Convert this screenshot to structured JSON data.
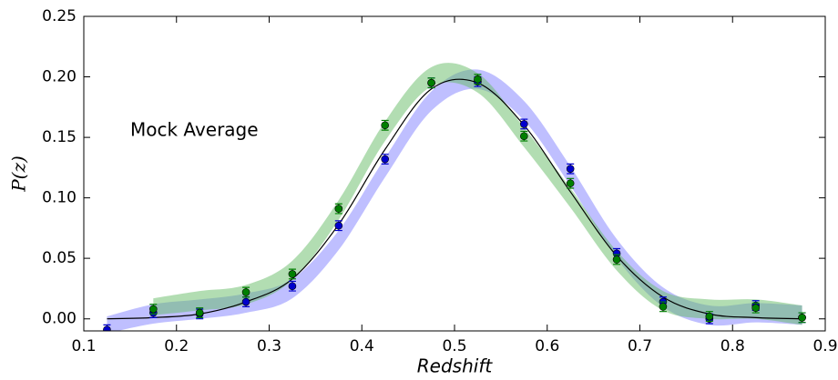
{
  "chart_data": {
    "type": "scatter",
    "annotation": "Mock Average",
    "xlabel": "Redshift",
    "ylabel": "P(z)",
    "xlim": [
      0.1,
      0.9
    ],
    "ylim": [
      -0.01,
      0.25
    ],
    "xticks": [
      0.1,
      0.2,
      0.3,
      0.4,
      0.5,
      0.6,
      0.7,
      0.8,
      0.9
    ],
    "yticks": [
      {
        "value": 0,
        "label": "0.00"
      },
      0.05,
      {
        "value": 0.1,
        "label": "0.10"
      },
      0.15,
      {
        "value": 0.2,
        "label": "0.20"
      },
      0.25
    ],
    "grid": false,
    "x": [
      0.125,
      0.175,
      0.225,
      0.275,
      0.325,
      0.375,
      0.425,
      0.475,
      0.525,
      0.575,
      0.625,
      0.675,
      0.725,
      0.775,
      0.825,
      0.875
    ],
    "series": [
      {
        "color": "#0000cc",
        "values": [
          -0.009,
          0.005,
          0.004,
          0.014,
          0.027,
          0.077,
          0.132,
          0.195,
          0.196,
          0.161,
          0.124,
          0.054,
          0.014,
          0.0,
          0.011,
          0.001
        ],
        "errors": [
          0.004,
          0.004,
          0.004,
          0.004,
          0.004,
          0.004,
          0.004,
          0.004,
          0.004,
          0.004,
          0.004,
          0.004,
          0.004,
          0.004,
          0.004,
          0.004
        ]
      },
      {
        "color": "#007f00",
        "values": [
          null,
          0.008,
          0.005,
          0.022,
          0.037,
          0.091,
          0.16,
          0.195,
          0.198,
          0.151,
          0.112,
          0.049,
          0.01,
          0.002,
          0.009,
          0.001
        ],
        "errors": [
          null,
          0.004,
          0.004,
          0.004,
          0.004,
          0.004,
          0.004,
          0.004,
          0.004,
          0.004,
          0.004,
          0.004,
          0.004,
          0.004,
          0.004,
          0.004
        ]
      }
    ],
    "bands": [
      {
        "color": "#8080ff",
        "x": [
          0.125,
          0.175,
          0.225,
          0.275,
          0.325,
          0.375,
          0.425,
          0.475,
          0.525,
          0.575,
          0.625,
          0.675,
          0.725,
          0.775,
          0.825,
          0.875
        ],
        "lower": [
          -0.012,
          -0.004,
          0.0,
          0.005,
          0.017,
          0.057,
          0.117,
          0.172,
          0.19,
          0.164,
          0.11,
          0.05,
          0.01,
          -0.005,
          -0.003,
          -0.005
        ],
        "upper": [
          0.002,
          0.012,
          0.016,
          0.021,
          0.033,
          0.073,
          0.133,
          0.188,
          0.206,
          0.18,
          0.126,
          0.066,
          0.026,
          0.011,
          0.013,
          0.011
        ]
      },
      {
        "color": "#66bb66",
        "x": [
          0.175,
          0.225,
          0.275,
          0.325,
          0.375,
          0.425,
          0.475,
          0.525,
          0.575,
          0.625,
          0.675,
          0.725,
          0.775,
          0.825,
          0.875
        ],
        "lower": [
          0.003,
          0.007,
          0.012,
          0.032,
          0.082,
          0.147,
          0.192,
          0.187,
          0.142,
          0.092,
          0.04,
          0.007,
          0.0,
          0.0,
          -0.005
        ],
        "upper": [
          0.017,
          0.023,
          0.028,
          0.048,
          0.098,
          0.163,
          0.208,
          0.203,
          0.158,
          0.108,
          0.056,
          0.023,
          0.016,
          0.016,
          0.011
        ]
      }
    ],
    "curve": {
      "color": "#000000",
      "x": [
        0.125,
        0.175,
        0.225,
        0.275,
        0.325,
        0.375,
        0.425,
        0.475,
        0.525,
        0.575,
        0.625,
        0.675,
        0.725,
        0.775,
        0.825,
        0.875
      ],
      "values": [
        0.0,
        0.001,
        0.004,
        0.014,
        0.033,
        0.078,
        0.14,
        0.19,
        0.195,
        0.16,
        0.105,
        0.052,
        0.018,
        0.004,
        0.001,
        0.0
      ]
    }
  }
}
